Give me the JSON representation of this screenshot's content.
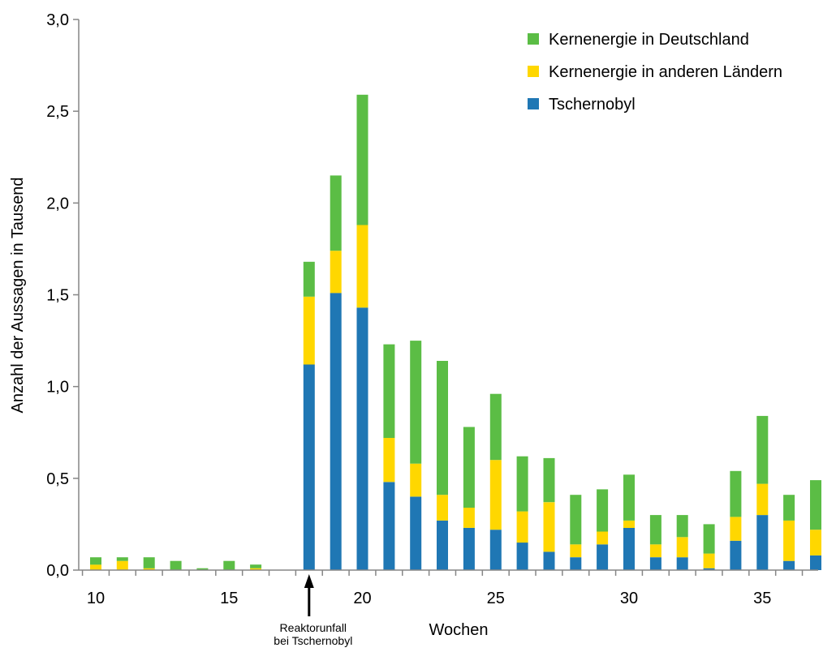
{
  "chart_data": {
    "type": "bar",
    "stacked": true,
    "xlabel": "Wochen",
    "ylabel": "Anzahl der Aussagen in Tausend",
    "ylim": [
      0,
      3.0
    ],
    "xlim": [
      10,
      37
    ],
    "x_ticks": [
      10,
      15,
      20,
      25,
      30,
      35
    ],
    "y_ticks": [
      "0,0",
      "0,5",
      "1,0",
      "1,5",
      "2,0",
      "2,5",
      "3,0"
    ],
    "y_tick_values": [
      0,
      0.5,
      1.0,
      1.5,
      2.0,
      2.5,
      3.0
    ],
    "grid": false,
    "legend_position": "top-right",
    "x": [
      10,
      11,
      12,
      13,
      14,
      15,
      16,
      18,
      19,
      20,
      21,
      22,
      23,
      24,
      25,
      26,
      27,
      28,
      29,
      30,
      31,
      32,
      33,
      34,
      35,
      36,
      37
    ],
    "series": [
      {
        "name": "Tschernobyl",
        "color": "#1f77b4",
        "values": [
          0,
          0,
          0,
          0,
          0,
          0,
          0,
          1.12,
          1.51,
          1.43,
          0.48,
          0.4,
          0.27,
          0.23,
          0.22,
          0.15,
          0.1,
          0.07,
          0.14,
          0.23,
          0.07,
          0.07,
          0.01,
          0.16,
          0.3,
          0.05,
          0.08
        ]
      },
      {
        "name": "Kernenergie in anderen Ländern",
        "color": "#ffd700",
        "values": [
          0.03,
          0.05,
          0.01,
          0,
          0,
          0,
          0.01,
          0.37,
          0.23,
          0.45,
          0.24,
          0.18,
          0.14,
          0.11,
          0.38,
          0.17,
          0.27,
          0.07,
          0.07,
          0.04,
          0.07,
          0.11,
          0.08,
          0.13,
          0.17,
          0.22,
          0.14
        ]
      },
      {
        "name": "Kernenergie in Deutschland",
        "color": "#5bbd45",
        "values": [
          0.04,
          0.02,
          0.06,
          0.05,
          0.01,
          0.05,
          0.02,
          0.19,
          0.41,
          0.71,
          0.51,
          0.67,
          0.73,
          0.44,
          0.36,
          0.3,
          0.24,
          0.27,
          0.23,
          0.25,
          0.16,
          0.12,
          0.16,
          0.25,
          0.37,
          0.14,
          0.27
        ]
      }
    ],
    "legend_order": [
      "Kernenergie in Deutschland",
      "Kernenergie in anderen Ländern",
      "Tschernobyl"
    ],
    "annotation": {
      "x": 18,
      "lines": [
        "Reaktorunfall",
        "bei Tschernobyl"
      ]
    }
  }
}
